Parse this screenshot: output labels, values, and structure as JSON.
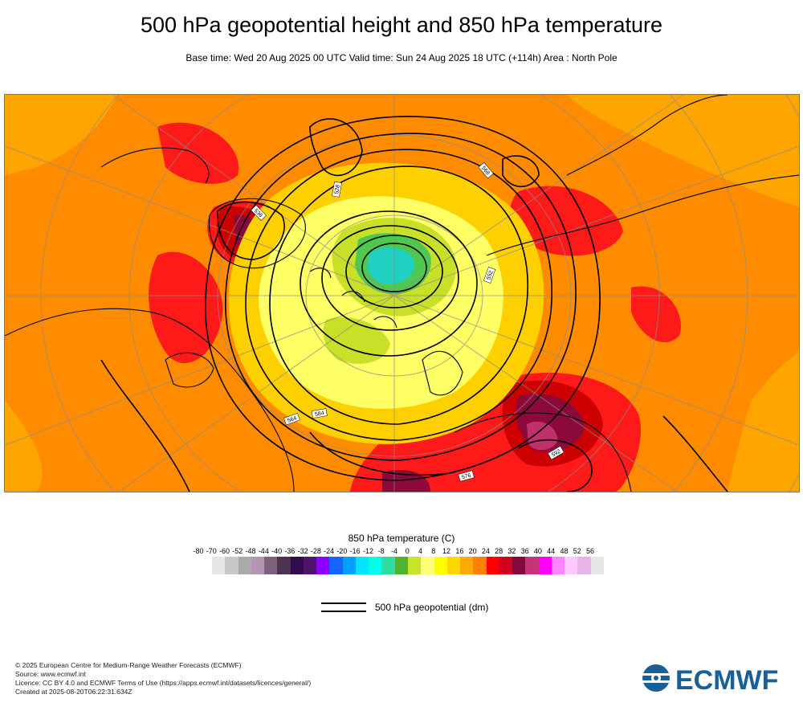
{
  "header": {
    "title": "500 hPa geopotential height and 850 hPa temperature",
    "subtitle": "Base time: Wed 20 Aug 2025 00 UTC Valid time: Sun 24 Aug 2025 18 UTC (+114h) Area : North Pole"
  },
  "map": {
    "area": "North Pole",
    "field_colors": {
      "ocean_warm": "#ff8c00",
      "warm": "#ffa500",
      "hot": "#ff1a1a",
      "very_hot": "#cc0000",
      "extreme": "#8b0a3a",
      "extreme_magenta": "#c0306a",
      "mild": "#ffd000",
      "cool": "#ffff66",
      "cold": "#c8e028",
      "colder": "#50c850",
      "coldest": "#20d0c0",
      "contour": "#000000",
      "coast": "#111111",
      "grid": "#8a8a8a"
    },
    "contour_labels": [
      {
        "text": "564"
      },
      {
        "text": "592"
      },
      {
        "text": "528"
      },
      {
        "text": "536"
      },
      {
        "text": "552"
      },
      {
        "text": "584"
      },
      {
        "text": "576"
      },
      {
        "text": "568"
      }
    ]
  },
  "legend": {
    "title": "850 hPa temperature (C)",
    "ticks": [
      "-80",
      "-70",
      "-60",
      "-52",
      "-48",
      "-44",
      "-40",
      "-36",
      "-32",
      "-28",
      "-24",
      "-20",
      "-16",
      "-12",
      "-8",
      "-4",
      "0",
      "4",
      "8",
      "12",
      "16",
      "20",
      "24",
      "28",
      "32",
      "36",
      "40",
      "44",
      "48",
      "52",
      "56"
    ],
    "colors": [
      "#e6e6e6",
      "#c8c8c8",
      "#aaaaaa",
      "#b496b4",
      "#7d647d",
      "#4b3250",
      "#320a50",
      "#50146e",
      "#8c00ff",
      "#1464ff",
      "#00a0ff",
      "#00e6ff",
      "#00ffe6",
      "#32dca0",
      "#50b432",
      "#c8e628",
      "#ffff78",
      "#ffff00",
      "#ffd700",
      "#ffaa00",
      "#ff8000",
      "#ff0000",
      "#d2001e",
      "#820a3c",
      "#c83278",
      "#ff00ff",
      "#ff82ff",
      "#ffc8ff",
      "#e6b4e6",
      "#e6e6e6"
    ],
    "geopotential_label": "500 hPa geopotential (dm)"
  },
  "footer": {
    "line1": "© 2025 European Centre for Medium-Range Weather Forecasts (ECMWF)",
    "line2": "Source: www.ecmwf.int",
    "line3": "Licence: CC BY 4.0 and ECMWF Terms of Use (https://apps.ecmwf.int/datasets/licences/general/)",
    "line4": "Created at 2025-08-20T06:22:31.634Z"
  },
  "logo": {
    "text": "ECMWF",
    "color": "#1a5f96"
  }
}
